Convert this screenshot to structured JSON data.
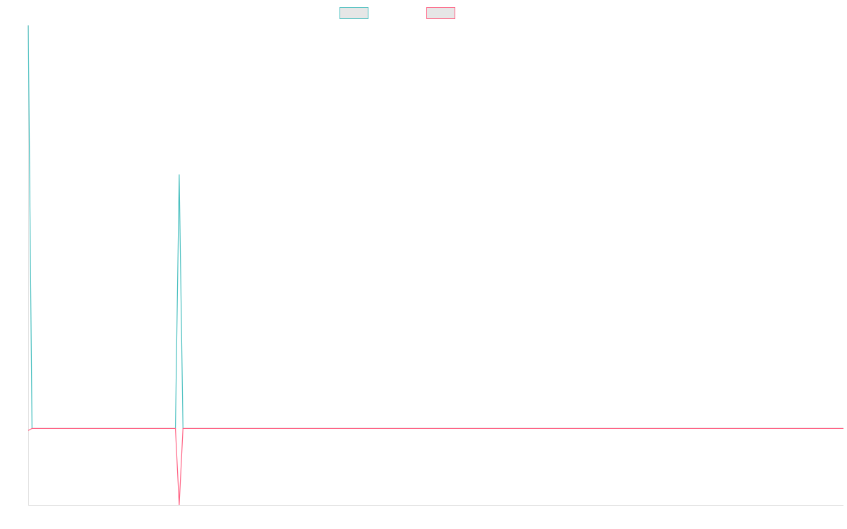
{
  "chart_data": {
    "type": "line",
    "ylim": [
      -19,
      100
    ],
    "series": [
      {
        "color": "#4bc0c0",
        "values": [
          100,
          0,
          0,
          0,
          0,
          0,
          0,
          0,
          0,
          0,
          0,
          0,
          0,
          0,
          0,
          0,
          0,
          0,
          0,
          0,
          0,
          0,
          0,
          0,
          0,
          0,
          0,
          0,
          0,
          0,
          0,
          0,
          0,
          0,
          0,
          0,
          0,
          0,
          0,
          0,
          63,
          0,
          0,
          0,
          0,
          0,
          0,
          0,
          0,
          0,
          0,
          0,
          0,
          0,
          0,
          0,
          0,
          0,
          0,
          0,
          0,
          0,
          0,
          0,
          0,
          0,
          0,
          0,
          0,
          0,
          0,
          0,
          0,
          0,
          0,
          0,
          0,
          0,
          0,
          0,
          0,
          0,
          0,
          0,
          0,
          0,
          0,
          0,
          0,
          0,
          0,
          0,
          0,
          0,
          0,
          0,
          0,
          0,
          0,
          0,
          0,
          0,
          0,
          0,
          0,
          0,
          0,
          0,
          0,
          0,
          0,
          0,
          0,
          0,
          0,
          0,
          0,
          0,
          0,
          0,
          0,
          0,
          0,
          0,
          0,
          0,
          0,
          0,
          0,
          0,
          0,
          0,
          0,
          0,
          0,
          0,
          0,
          0,
          0,
          0,
          0,
          0,
          0,
          0,
          0,
          0,
          0,
          0,
          0,
          0,
          0,
          0,
          0,
          0,
          0,
          0,
          0,
          0,
          0,
          0,
          0,
          0,
          0,
          0,
          0,
          0,
          0,
          0,
          0,
          0,
          0,
          0,
          0,
          0,
          0,
          0,
          0,
          0,
          0,
          0,
          0,
          0,
          0,
          0,
          0,
          0,
          0,
          0,
          0,
          0,
          0,
          0,
          0,
          0,
          0,
          0,
          0,
          0,
          0,
          0,
          0,
          0,
          0,
          0,
          0,
          0,
          0,
          0,
          0,
          0,
          0,
          0,
          0,
          0,
          0,
          0,
          0
        ]
      },
      {
        "color": "#ff6384",
        "values": [
          -0.5,
          0,
          0,
          0,
          0,
          0,
          0,
          0,
          0,
          0,
          0,
          0,
          0,
          0,
          0,
          0,
          0,
          0,
          0,
          0,
          0,
          0,
          0,
          0,
          0,
          0,
          0,
          0,
          0,
          0,
          0,
          0,
          0,
          0,
          0,
          0,
          0,
          0,
          0,
          0,
          -19,
          0,
          0,
          0,
          0,
          0,
          0,
          0,
          0,
          0,
          0,
          0,
          0,
          0,
          0,
          0,
          0,
          0,
          0,
          0,
          0,
          0,
          0,
          0,
          0,
          0,
          0,
          0,
          0,
          0,
          0,
          0,
          0,
          0,
          0,
          0,
          0,
          0,
          0,
          0,
          0,
          0,
          0,
          0,
          0,
          0,
          0,
          0,
          0,
          0,
          0,
          0,
          0,
          0,
          0,
          0,
          0,
          0,
          0,
          0,
          0,
          0,
          0,
          0,
          0,
          0,
          0,
          0,
          0,
          0,
          0,
          0,
          0,
          0,
          0,
          0,
          0,
          0,
          0,
          0,
          0,
          0,
          0,
          0,
          0,
          0,
          0,
          0,
          0,
          0,
          0,
          0,
          0,
          0,
          0,
          0,
          0,
          0,
          0,
          0,
          0,
          0,
          0,
          0,
          0,
          0,
          0,
          0,
          0,
          0,
          0,
          0,
          0,
          0,
          0,
          0,
          0,
          0,
          0,
          0,
          0,
          0,
          0,
          0,
          0,
          0,
          0,
          0,
          0,
          0,
          0,
          0,
          0,
          0,
          0,
          0,
          0,
          0,
          0,
          0,
          0,
          0,
          0,
          0,
          0,
          0,
          0,
          0,
          0,
          0,
          0,
          0,
          0,
          0,
          0,
          0,
          0,
          0,
          0,
          0,
          0,
          0,
          0,
          0,
          0,
          0,
          0,
          0,
          0,
          0,
          0,
          0,
          0,
          0,
          0,
          0,
          0
        ]
      }
    ]
  }
}
